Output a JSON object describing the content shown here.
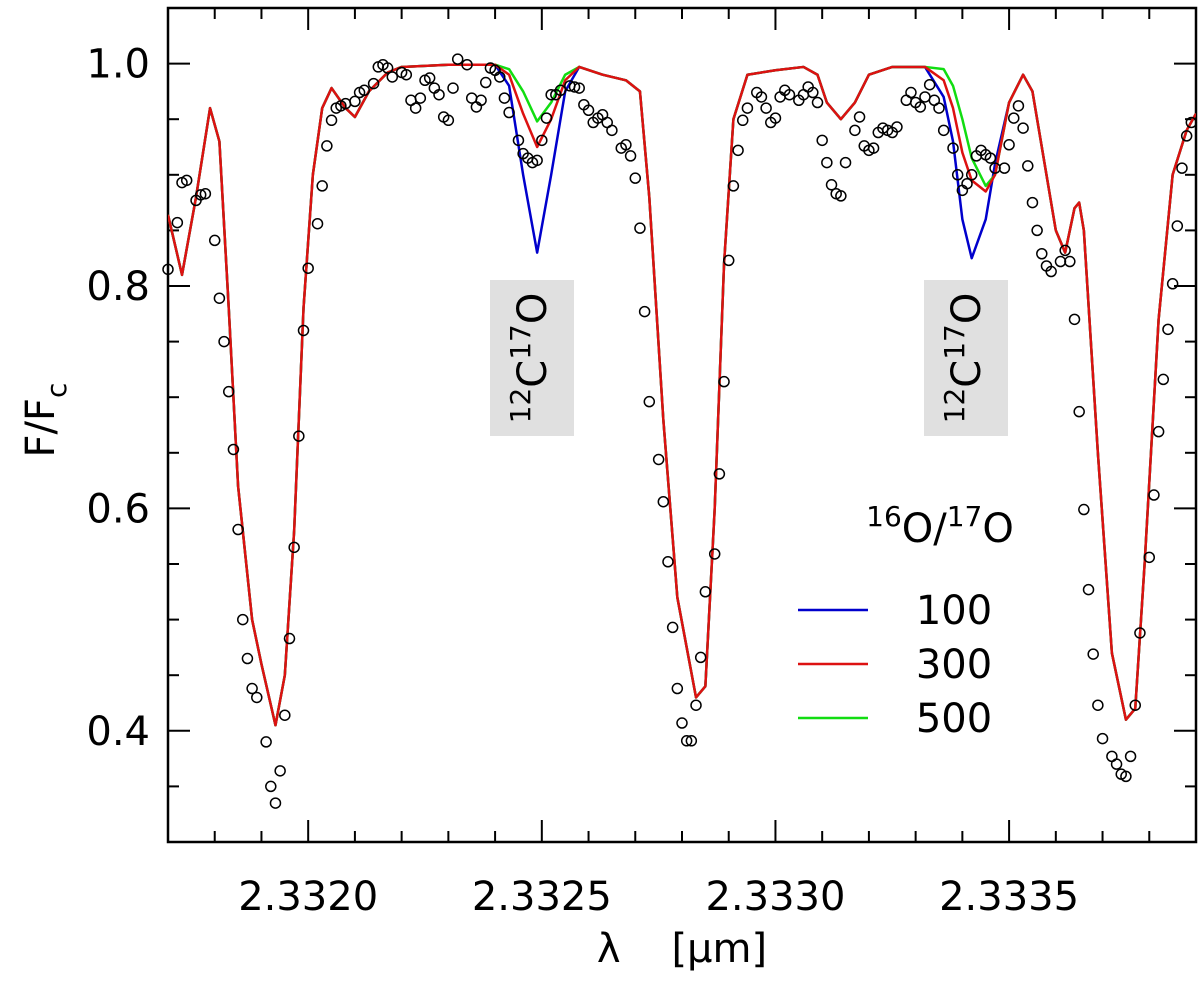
{
  "chart_data": {
    "type": "line",
    "xlabel": "λ    [μm]",
    "ylabel": {
      "parts": [
        {
          "text": "F/F"
        },
        {
          "text": "c",
          "script": "sub"
        }
      ]
    },
    "xlim": [
      2.3317,
      2.3339
    ],
    "ylim": [
      0.3,
      1.05
    ],
    "xticks": [
      {
        "value": 2.332,
        "label": "2.3320"
      },
      2.3325,
      {
        "value": 2.333,
        "label": "2.3330"
      },
      2.3335
    ],
    "yticks": [
      0.4,
      0.6,
      0.8,
      {
        "value": 1,
        "label": "1.0"
      }
    ],
    "xminor": [
      2.3318,
      2.3319,
      2.3321,
      2.3322,
      2.3323,
      2.3324,
      2.3326,
      2.3327,
      2.3328,
      2.3329,
      2.3331,
      2.3332,
      2.3333,
      2.3334,
      2.3336,
      2.3337,
      2.3338
    ],
    "yminor": [
      0.35,
      0.45,
      0.5,
      0.55,
      0.65,
      0.7,
      0.75,
      0.85,
      0.9,
      0.95
    ],
    "annotations": [
      {
        "parts": [
          {
            "text": "12",
            "script": "super"
          },
          {
            "text": "C"
          },
          {
            "text": "17",
            "script": "super"
          },
          {
            "text": "O"
          }
        ]
      },
      {
        "parts": [
          {
            "text": "12",
            "script": "super"
          },
          {
            "text": "C"
          },
          {
            "text": "17",
            "script": "super"
          },
          {
            "text": "O"
          }
        ]
      }
    ],
    "legend_title": {
      "parts": [
        {
          "text": "16",
          "script": "super"
        },
        {
          "text": "O/"
        },
        {
          "text": "17",
          "script": "super"
        },
        {
          "text": "O"
        }
      ]
    },
    "legend_loc": "right",
    "x": [
      2.3317,
      2.33173,
      2.33176,
      2.33179,
      2.33181,
      2.33183,
      2.33185,
      2.33188,
      2.3319,
      2.33193,
      2.33195,
      2.33197,
      2.33199,
      2.33201,
      2.33203,
      2.33205,
      2.33208,
      2.3321,
      2.33213,
      2.33217,
      2.3322,
      2.3323,
      2.3324,
      2.33243,
      2.33246,
      2.33249,
      2.33252,
      2.33255,
      2.33258,
      2.33263,
      2.33268,
      2.33271,
      2.33273,
      2.33276,
      2.33279,
      2.33283,
      2.33285,
      2.33287,
      2.33289,
      2.33291,
      2.33294,
      2.333,
      2.33306,
      2.33309,
      2.33311,
      2.33314,
      2.33317,
      2.3332,
      2.33325,
      2.33332,
      2.33336,
      2.33338,
      2.3334,
      2.33342,
      2.33345,
      2.33347,
      2.3335,
      2.33353,
      2.33355,
      2.33358,
      2.3336,
      2.33362,
      2.33364,
      2.33365,
      2.33366,
      2.33369,
      2.33372,
      2.33375,
      2.33377,
      2.33379,
      2.33382,
      2.33385,
      2.33388,
      2.3339
    ],
    "series": [
      {
        "name": "100",
        "color": "#0000cc",
        "values": [
          0.864,
          0.81,
          0.88,
          0.96,
          0.93,
          0.78,
          0.62,
          0.5,
          0.46,
          0.405,
          0.45,
          0.58,
          0.78,
          0.9,
          0.96,
          0.978,
          0.96,
          0.952,
          0.975,
          0.992,
          0.997,
          0.999,
          0.999,
          0.98,
          0.9,
          0.83,
          0.9,
          0.975,
          0.997,
          0.99,
          0.985,
          0.975,
          0.88,
          0.68,
          0.52,
          0.43,
          0.44,
          0.6,
          0.82,
          0.95,
          0.99,
          0.994,
          0.997,
          0.99,
          0.965,
          0.95,
          0.965,
          0.99,
          0.997,
          0.997,
          0.97,
          0.93,
          0.86,
          0.825,
          0.86,
          0.91,
          0.965,
          0.99,
          0.975,
          0.9,
          0.85,
          0.83,
          0.87,
          0.875,
          0.85,
          0.65,
          0.47,
          0.41,
          0.42,
          0.55,
          0.77,
          0.9,
          0.94,
          0.955
        ]
      },
      {
        "name": "300",
        "color": "#dd1111",
        "values": [
          0.864,
          0.81,
          0.88,
          0.96,
          0.93,
          0.78,
          0.62,
          0.5,
          0.46,
          0.405,
          0.45,
          0.58,
          0.78,
          0.9,
          0.96,
          0.978,
          0.96,
          0.952,
          0.975,
          0.992,
          0.997,
          0.999,
          0.999,
          0.99,
          0.955,
          0.925,
          0.95,
          0.985,
          0.997,
          0.99,
          0.985,
          0.975,
          0.88,
          0.68,
          0.52,
          0.43,
          0.44,
          0.6,
          0.82,
          0.95,
          0.99,
          0.994,
          0.997,
          0.99,
          0.965,
          0.95,
          0.965,
          0.99,
          0.997,
          0.997,
          0.985,
          0.96,
          0.92,
          0.895,
          0.885,
          0.9,
          0.965,
          0.99,
          0.975,
          0.9,
          0.85,
          0.83,
          0.87,
          0.875,
          0.85,
          0.65,
          0.47,
          0.41,
          0.42,
          0.55,
          0.77,
          0.9,
          0.94,
          0.955
        ]
      },
      {
        "name": "500",
        "color": "#11dd11",
        "values": [
          0.864,
          0.81,
          0.88,
          0.96,
          0.93,
          0.78,
          0.62,
          0.5,
          0.46,
          0.405,
          0.45,
          0.58,
          0.78,
          0.9,
          0.96,
          0.978,
          0.96,
          0.952,
          0.975,
          0.992,
          0.997,
          0.999,
          0.999,
          0.995,
          0.975,
          0.948,
          0.965,
          0.99,
          0.997,
          0.99,
          0.985,
          0.975,
          0.88,
          0.68,
          0.52,
          0.43,
          0.44,
          0.6,
          0.82,
          0.95,
          0.99,
          0.994,
          0.997,
          0.99,
          0.965,
          0.95,
          0.965,
          0.99,
          0.997,
          0.997,
          0.995,
          0.98,
          0.95,
          0.915,
          0.89,
          0.9,
          0.965,
          0.99,
          0.975,
          0.9,
          0.85,
          0.83,
          0.87,
          0.875,
          0.85,
          0.65,
          0.47,
          0.41,
          0.42,
          0.55,
          0.77,
          0.9,
          0.94,
          0.955
        ]
      }
    ],
    "observed": {
      "marker_color": "#000000",
      "x": [
        2.3317,
        2.33172,
        2.33173,
        2.33174,
        2.33176,
        2.33177,
        2.33178,
        2.3318,
        2.33181,
        2.33182,
        2.33183,
        2.33184,
        2.33185,
        2.33186,
        2.33187,
        2.33188,
        2.33189,
        2.33191,
        2.33192,
        2.33193,
        2.33194,
        2.33195,
        2.33196,
        2.33197,
        2.33198,
        2.33199,
        2.332,
        2.33202,
        2.33203,
        2.33204,
        2.33205,
        2.33206,
        2.33207,
        2.33208,
        2.3321,
        2.33211,
        2.33212,
        2.33214,
        2.33215,
        2.33216,
        2.33217,
        2.33218,
        2.3322,
        2.33221,
        2.33222,
        2.33223,
        2.33224,
        2.33225,
        2.33226,
        2.33227,
        2.33228,
        2.33229,
        2.3323,
        2.33231,
        2.33232,
        2.33234,
        2.33235,
        2.33236,
        2.33237,
        2.33238,
        2.33239,
        2.3324,
        2.33241,
        2.33242,
        2.33243,
        2.33245,
        2.33246,
        2.33247,
        2.33248,
        2.33249,
        2.3325,
        2.33251,
        2.33252,
        2.33253,
        2.33254,
        2.33256,
        2.33257,
        2.33258,
        2.33259,
        2.3326,
        2.33261,
        2.33262,
        2.33263,
        2.33264,
        2.33265,
        2.33267,
        2.33268,
        2.33269,
        2.3327,
        2.33271,
        2.33272,
        2.33273,
        2.33275,
        2.33276,
        2.33277,
        2.33278,
        2.33279,
        2.3328,
        2.33281,
        2.33282,
        2.33283,
        2.33284,
        2.33285,
        2.33287,
        2.33288,
        2.33289,
        2.3329,
        2.33291,
        2.33292,
        2.33293,
        2.33294,
        2.33296,
        2.33297,
        2.33298,
        2.33299,
        2.333,
        2.33301,
        2.33302,
        2.33303,
        2.33305,
        2.33306,
        2.33307,
        2.33308,
        2.33309,
        2.3331,
        2.33311,
        2.33312,
        2.33313,
        2.33314,
        2.33315,
        2.33317,
        2.33318,
        2.33319,
        2.3332,
        2.33321,
        2.33322,
        2.33323,
        2.33324,
        2.33325,
        2.33326,
        2.33328,
        2.33329,
        2.3333,
        2.33331,
        2.33332,
        2.33333,
        2.33334,
        2.33335,
        2.33336,
        2.33338,
        2.33339,
        2.3334,
        2.33341,
        2.33342,
        2.33343,
        2.33344,
        2.33345,
        2.33346,
        2.33347,
        2.33349,
        2.3335,
        2.33351,
        2.33352,
        2.33353,
        2.33354,
        2.33355,
        2.33356,
        2.33357,
        2.33358,
        2.33359,
        2.33361,
        2.33362,
        2.33363,
        2.33364,
        2.33365,
        2.33366,
        2.33367,
        2.33368,
        2.33369,
        2.3337,
        2.33372,
        2.33373,
        2.33374,
        2.33375,
        2.33376,
        2.33377,
        2.33378,
        2.3338,
        2.33381,
        2.33382,
        2.33383,
        2.33384,
        2.33385,
        2.33386,
        2.33387,
        2.33388,
        2.33389
      ],
      "y": [
        0.815,
        0.857,
        0.893,
        0.895,
        0.877,
        0.882,
        0.883,
        0.841,
        0.789,
        0.75,
        0.705,
        0.653,
        0.581,
        0.5,
        0.465,
        0.438,
        0.43,
        0.39,
        0.35,
        0.335,
        0.364,
        0.414,
        0.483,
        0.565,
        0.665,
        0.76,
        0.816,
        0.856,
        0.89,
        0.926,
        0.949,
        0.96,
        0.962,
        0.964,
        0.966,
        0.974,
        0.976,
        0.982,
        0.997,
        0.999,
        0.996,
        0.988,
        0.992,
        0.99,
        0.967,
        0.96,
        0.969,
        0.985,
        0.987,
        0.978,
        0.972,
        0.952,
        0.949,
        0.978,
        1.004,
        0.999,
        0.969,
        0.961,
        0.967,
        0.983,
        0.996,
        0.994,
        0.988,
        0.969,
        0.956,
        0.931,
        0.919,
        0.915,
        0.911,
        0.913,
        0.931,
        0.951,
        0.972,
        0.972,
        0.976,
        0.98,
        0.979,
        0.978,
        0.963,
        0.958,
        0.947,
        0.951,
        0.954,
        0.947,
        0.94,
        0.924,
        0.927,
        0.917,
        0.897,
        0.852,
        0.777,
        0.696,
        0.644,
        0.606,
        0.552,
        0.493,
        0.438,
        0.407,
        0.391,
        0.391,
        0.423,
        0.466,
        0.525,
        0.559,
        0.631,
        0.714,
        0.823,
        0.89,
        0.922,
        0.949,
        0.96,
        0.974,
        0.97,
        0.96,
        0.947,
        0.951,
        0.97,
        0.976,
        0.972,
        0.967,
        0.972,
        0.979,
        0.974,
        0.965,
        0.931,
        0.911,
        0.891,
        0.883,
        0.881,
        0.911,
        0.94,
        0.952,
        0.926,
        0.922,
        0.924,
        0.938,
        0.942,
        0.94,
        0.938,
        0.943,
        0.967,
        0.974,
        0.965,
        0.961,
        0.97,
        0.981,
        0.967,
        0.96,
        0.94,
        0.924,
        0.9,
        0.886,
        0.892,
        0.9,
        0.917,
        0.922,
        0.918,
        0.915,
        0.906,
        0.906,
        0.927,
        0.951,
        0.962,
        0.942,
        0.908,
        0.875,
        0.85,
        0.829,
        0.818,
        0.813,
        0.822,
        0.832,
        0.822,
        0.77,
        0.687,
        0.599,
        0.527,
        0.469,
        0.423,
        0.393,
        0.377,
        0.37,
        0.361,
        0.359,
        0.377,
        0.423,
        0.488,
        0.556,
        0.612,
        0.669,
        0.716,
        0.761,
        0.802,
        0.854,
        0.906,
        0.935,
        0.947
      ]
    }
  }
}
